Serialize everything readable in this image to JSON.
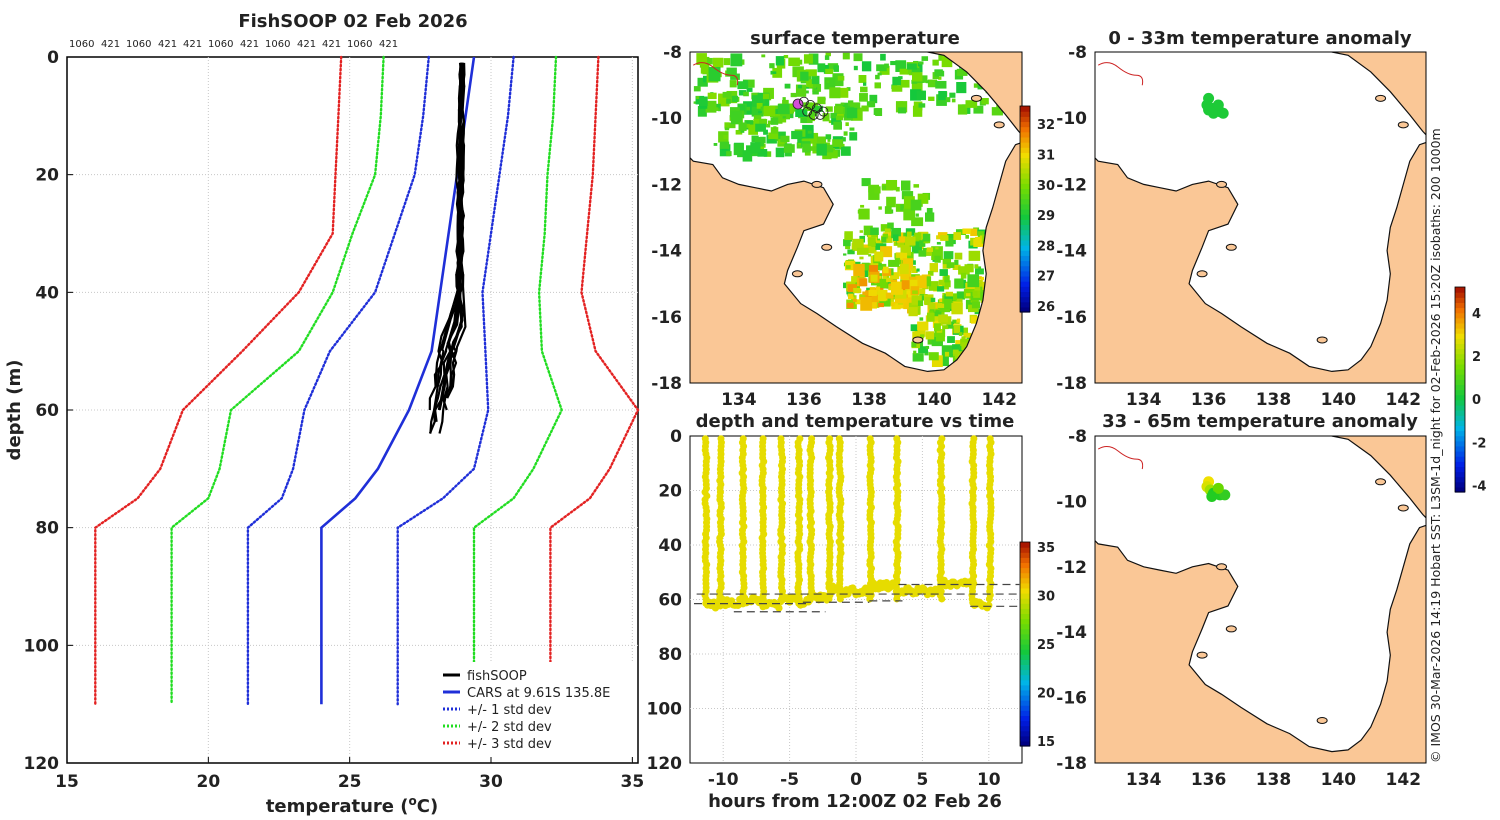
{
  "chart_data": [
    {
      "type": "line",
      "title": "FishSOOP 02 Feb 2026",
      "top_labels": [
        "1060",
        "421",
        "1060",
        "421",
        "421",
        "1060",
        "421",
        "1060",
        "421",
        "421",
        "1060",
        "421"
      ],
      "xlabel": "temperature (°C)",
      "ylabel": "depth (m)",
      "xlim": [
        15,
        35.2
      ],
      "ylim": [
        0,
        120
      ],
      "xticks": [
        15,
        20,
        25,
        30,
        35
      ],
      "yticks": [
        0,
        20,
        40,
        60,
        80,
        100,
        120
      ],
      "grid": true,
      "legend": [
        "fishSOOP",
        "CARS at 9.61S 135.8E",
        "+/- 1 std dev",
        "+/- 2 std dev",
        "+/- 3 std dev"
      ],
      "legend_position": "bottom-right",
      "series": [
        {
          "name": "CARS mean",
          "color": "#1f2fd8",
          "style": "solid",
          "points": [
            [
              29.4,
              0
            ],
            [
              29.1,
              10
            ],
            [
              28.8,
              20
            ],
            [
              28.5,
              30
            ],
            [
              28.2,
              40
            ],
            [
              27.9,
              50
            ],
            [
              27.1,
              60
            ],
            [
              26.0,
              70
            ],
            [
              25.2,
              75
            ],
            [
              24.0,
              80
            ],
            [
              24.0,
              110
            ]
          ]
        },
        {
          "name": "mean - 1 sd",
          "color": "#1f2fd8",
          "style": "dotted",
          "points": [
            [
              27.8,
              0
            ],
            [
              27.6,
              10
            ],
            [
              27.3,
              20
            ],
            [
              26.6,
              30
            ],
            [
              25.9,
              40
            ],
            [
              24.3,
              50
            ],
            [
              23.4,
              60
            ],
            [
              23.0,
              70
            ],
            [
              22.6,
              75
            ],
            [
              21.4,
              80
            ],
            [
              21.4,
              110
            ]
          ]
        },
        {
          "name": "mean + 1 sd",
          "color": "#1f2fd8",
          "style": "dotted",
          "points": [
            [
              30.8,
              0
            ],
            [
              30.6,
              10
            ],
            [
              30.3,
              20
            ],
            [
              30.0,
              30
            ],
            [
              29.7,
              40
            ],
            [
              29.8,
              50
            ],
            [
              29.9,
              60
            ],
            [
              29.4,
              70
            ],
            [
              28.3,
              75
            ],
            [
              26.7,
              80
            ],
            [
              26.7,
              110
            ]
          ]
        },
        {
          "name": "mean - 2 sd",
          "color": "#22dd22",
          "style": "dotted",
          "points": [
            [
              26.2,
              0
            ],
            [
              26.1,
              10
            ],
            [
              25.9,
              20
            ],
            [
              25.1,
              30
            ],
            [
              24.4,
              40
            ],
            [
              23.2,
              50
            ],
            [
              20.8,
              60
            ],
            [
              20.4,
              70
            ],
            [
              20.0,
              75
            ],
            [
              18.7,
              80
            ],
            [
              18.7,
              110
            ]
          ]
        },
        {
          "name": "mean + 2 sd",
          "color": "#22dd22",
          "style": "dotted",
          "points": [
            [
              32.3,
              0
            ],
            [
              32.2,
              10
            ],
            [
              32.0,
              20
            ],
            [
              31.9,
              30
            ],
            [
              31.7,
              40
            ],
            [
              31.8,
              50
            ],
            [
              32.5,
              60
            ],
            [
              31.5,
              70
            ],
            [
              30.8,
              75
            ],
            [
              29.4,
              80
            ],
            [
              29.4,
              110
            ]
          ]
        },
        {
          "name": "mean - 3 sd",
          "color": "#e32222",
          "style": "dotted",
          "points": [
            [
              24.7,
              0
            ],
            [
              24.6,
              10
            ],
            [
              24.5,
              20
            ],
            [
              24.4,
              30
            ],
            [
              23.2,
              40
            ],
            [
              21.2,
              50
            ],
            [
              19.1,
              60
            ],
            [
              18.3,
              70
            ],
            [
              17.5,
              75
            ],
            [
              16.0,
              80
            ],
            [
              16.0,
              110
            ]
          ]
        },
        {
          "name": "mean + 3 sd",
          "color": "#e32222",
          "style": "dotted",
          "points": [
            [
              33.8,
              0
            ],
            [
              33.7,
              10
            ],
            [
              33.6,
              20
            ],
            [
              33.4,
              30
            ],
            [
              33.2,
              40
            ],
            [
              33.7,
              50
            ],
            [
              35.2,
              60
            ],
            [
              34.2,
              70
            ],
            [
              33.5,
              75
            ],
            [
              32.1,
              80
            ],
            [
              32.1,
              110
            ]
          ]
        }
      ],
      "fishsoop_profiles": {
        "color": "#000000",
        "count": 12,
        "depth_range": [
          0,
          65
        ],
        "temperature_range": [
          27.3,
          29.1
        ]
      }
    },
    {
      "type": "heatmap",
      "title": "surface temperature",
      "xlim": [
        132.5,
        142.7
      ],
      "ylim": [
        -18,
        -8
      ],
      "xticks": [
        134,
        136,
        138,
        140,
        142
      ],
      "yticks": [
        -8,
        -10,
        -12,
        -14,
        -16,
        -18
      ],
      "colorbar": {
        "range": [
          25.8,
          32.6
        ],
        "ticks": [
          26,
          27,
          28,
          29,
          30,
          31,
          32
        ]
      },
      "observation_marker": {
        "lon": 135.8,
        "lat": -9.6,
        "color": "#d34fd8"
      }
    },
    {
      "type": "scatter",
      "title": "depth and temperature vs time",
      "xlabel": "hours from 12:00Z 02 Feb 26",
      "xlim": [
        -12.5,
        12.5
      ],
      "ylim": [
        0,
        120
      ],
      "xticks": [
        -10,
        -5,
        0,
        5,
        10
      ],
      "yticks": [
        0,
        20,
        40,
        60,
        80,
        100,
        120
      ],
      "colorbar": {
        "range": [
          14.5,
          35.5
        ],
        "ticks": [
          15,
          20,
          25,
          30,
          35
        ]
      },
      "descents_hours": [
        -11.3,
        -10.2,
        -8.5,
        -7.0,
        -5.6,
        -4.3,
        -3.4,
        -2.0,
        -1.2,
        1.1,
        3.1,
        6.4,
        8.8,
        10.1
      ],
      "bottom_depth_m": [
        62,
        61,
        60,
        62,
        60,
        61,
        59,
        56,
        57,
        55,
        57,
        54,
        62,
        54
      ],
      "temperature_value": 30
    },
    {
      "type": "scatter",
      "title": "0 - 33m temperature anomaly",
      "xlim": [
        132.5,
        142.7
      ],
      "ylim": [
        -18,
        -8
      ],
      "xticks": [
        134,
        136,
        138,
        140,
        142
      ],
      "yticks": [
        -8,
        -10,
        -12,
        -14,
        -16,
        -18
      ],
      "points_lonlat": [
        [
          136.0,
          -9.4
        ],
        [
          135.95,
          -9.6
        ],
        [
          136.1,
          -9.7
        ],
        [
          136.25,
          -9.7
        ],
        [
          136.35,
          -9.8
        ],
        [
          136.0,
          -9.75
        ],
        [
          136.15,
          -9.85
        ],
        [
          136.45,
          -9.85
        ],
        [
          136.3,
          -9.6
        ]
      ],
      "anomaly_value": 0.1
    },
    {
      "type": "scatter",
      "title": "33 - 65m temperature anomaly",
      "xlim": [
        132.5,
        142.7
      ],
      "ylim": [
        -18,
        -8
      ],
      "xticks": [
        134,
        136,
        138,
        140,
        142
      ],
      "yticks": [
        -8,
        -10,
        -12,
        -14,
        -16,
        -18
      ],
      "points_lonlat": [
        [
          136.0,
          -9.4
        ],
        [
          135.95,
          -9.55
        ],
        [
          136.05,
          -9.65
        ],
        [
          136.15,
          -9.75
        ],
        [
          136.25,
          -9.7
        ],
        [
          136.35,
          -9.8
        ],
        [
          136.5,
          -9.8
        ],
        [
          136.3,
          -9.6
        ],
        [
          136.1,
          -9.85
        ]
      ],
      "anomaly_colors": [
        "#f0e000",
        "#d8e000",
        "#a0e000",
        "#22cc22",
        "#1ec828",
        "#22cc22",
        "#33cc22",
        "#66d800",
        "#22cc22"
      ],
      "colorbar": {
        "range": [
          -4.3,
          5.2
        ],
        "ticks": [
          -4,
          -2,
          0,
          2,
          4
        ]
      }
    }
  ],
  "credit_line": "© IMOS 30-Mar-2026 14:19 Hobart SST: L3SM-1d_night for 02-Feb-2026 15:20Z isobaths: 200  1000m",
  "colors": {
    "land": "#fac796",
    "coast": "#000000",
    "grid": "#bdbdbd"
  }
}
